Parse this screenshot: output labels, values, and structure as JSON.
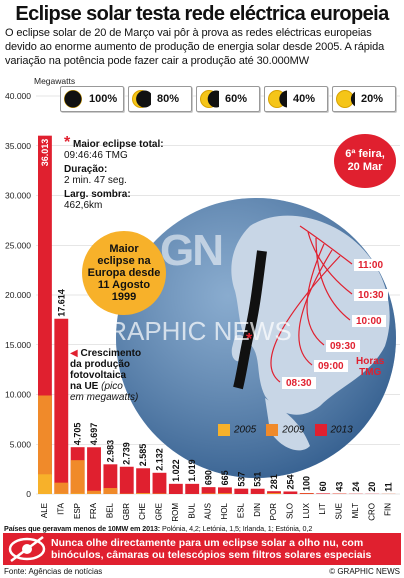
{
  "title": "Eclipse solar testa rede eléctrica europeia",
  "intro": "O eclipse solar de 20 de Março vai pôr à prova as redes eléctricas europeias devido ao enorme aumento de produção de energia solar desde 2005. A rápida variação na potência pode fazer cair a produção até 30.000MW",
  "phases": [
    {
      "pct": "100%",
      "fraction": 1.0
    },
    {
      "pct": "80%",
      "fraction": 0.8
    },
    {
      "pct": "60%",
      "fraction": 0.6
    },
    {
      "pct": "40%",
      "fraction": 0.4
    },
    {
      "pct": "20%",
      "fraction": 0.2
    }
  ],
  "facts": {
    "max_label": "Maior eclipse total:",
    "max_value": "09:46:46 TMG",
    "dur_label": "Duração:",
    "dur_value": "2 min. 47 seg.",
    "width_label": "Larg. sombra:",
    "width_value": "462,6km"
  },
  "date_badge": {
    "line1": "6ª feira,",
    "line2": "20 Mar"
  },
  "max_europe": {
    "l1": "Maior",
    "l2": "eclipse na",
    "l3": "Europa desde",
    "l4": "11 Agosto",
    "l5": "1999"
  },
  "growth": {
    "l1": "Crescimento",
    "l2": "da produção",
    "l3": "fotovoltaica",
    "l4": "na UE",
    "l5": "(pico",
    "l6": "em megawatts)"
  },
  "time_lines": [
    "11:00",
    "10:30",
    "10:00",
    "09:30",
    "09:00",
    "08:30"
  ],
  "horas": {
    "l1": "Horas",
    "l2": "TMG"
  },
  "legend": [
    {
      "year": "2005",
      "color": "#f7b12a"
    },
    {
      "year": "2009",
      "color": "#f08a2a"
    },
    {
      "year": "2013",
      "color": "#e0202f"
    }
  ],
  "watermark": {
    "gn": "GN",
    "text": "GRAPHIC NEWS"
  },
  "chart_data": {
    "type": "bar",
    "ylabel": "Megawatts",
    "ylim": [
      0,
      40000
    ],
    "yticks": [
      "40.000",
      "35.000",
      "30.000",
      "25.000",
      "20.000",
      "15.000",
      "10.000",
      "5.000",
      "0"
    ],
    "categories": [
      "ALE",
      "ITA",
      "ESP",
      "FRA",
      "BEL",
      "GBR",
      "CHE",
      "GRE",
      "ROM",
      "BUL",
      "AUS",
      "HOL",
      "ESL",
      "DIN",
      "POR",
      "SLO",
      "LUX",
      "LIT",
      "SUE",
      "MLT",
      "CRO",
      "FIN"
    ],
    "labels": [
      "36.013",
      "17.614",
      "4.705",
      "4.697",
      "2.983",
      "2.739",
      "2.585",
      "2.132",
      "1.022",
      "1.019",
      "690",
      "665",
      "537",
      "531",
      "281",
      "254",
      "100",
      "60",
      "43",
      "24",
      "20",
      "11"
    ],
    "series": [
      {
        "name": "2005",
        "values": [
          1980,
          37,
          58,
          33,
          2,
          11,
          27,
          1,
          0,
          0,
          24,
          51,
          0,
          3,
          3,
          0,
          23,
          0,
          4,
          0,
          0,
          4
        ]
      },
      {
        "name": "2009",
        "values": [
          9900,
          1140,
          3400,
          330,
          600,
          30,
          100,
          50,
          1,
          6,
          53,
          68,
          0,
          5,
          100,
          1,
          26,
          0,
          9,
          2,
          0,
          6
        ]
      },
      {
        "name": "2013",
        "values": [
          36013,
          17614,
          4705,
          4697,
          2983,
          2739,
          2585,
          2132,
          1022,
          1019,
          690,
          665,
          537,
          531,
          281,
          254,
          100,
          60,
          43,
          24,
          20,
          11
        ]
      }
    ]
  },
  "footnote": {
    "bold": "Países que geravam menos de 10MW em 2013:",
    "rest": " Polónia, 4,2; Letónia, 1,5; Irlanda, 1; Estónia, 0,2"
  },
  "warning": {
    "l1": "Nunca olhe directamente para um eclipse solar a olho nu, com",
    "l2": "binóculos, câmaras ou telescópios sem filtros solares especiais"
  },
  "source": "Fonte: Agências de notícias",
  "copyright": "© GRAPHIC NEWS"
}
